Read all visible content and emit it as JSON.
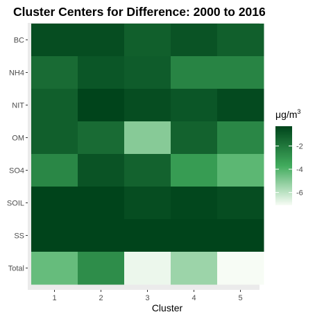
{
  "chart_data": {
    "type": "heatmap",
    "title": "Cluster Centers for Difference: 2000 to 2016",
    "xlabel": "Cluster",
    "ylabel": "",
    "x": [
      "1",
      "2",
      "3",
      "4",
      "5"
    ],
    "y": [
      "BC",
      "NH4",
      "NIT",
      "OM",
      "SO4",
      "SOIL",
      "SS",
      "Total"
    ],
    "values": [
      [
        -0.6,
        -0.6,
        -1.2,
        -0.8,
        -1.2
      ],
      [
        -1.6,
        -0.9,
        -1.1,
        -2.4,
        -2.4
      ],
      [
        -1.2,
        -0.3,
        -0.6,
        -0.9,
        -0.5
      ],
      [
        -1.2,
        -1.6,
        -5.0,
        -1.3,
        -2.5
      ],
      [
        -2.5,
        -0.8,
        -1.3,
        -3.2,
        -4.2
      ],
      [
        -0.3,
        -0.3,
        -0.6,
        -0.4,
        -0.6
      ],
      [
        -0.3,
        -0.3,
        -0.3,
        -0.3,
        -0.3
      ],
      [
        -4.4,
        -2.7,
        -6.9,
        -5.4,
        -7.1
      ]
    ],
    "color_scale": {
      "title": "μg/m",
      "title_superscript": "3",
      "range": [
        -7.1,
        -0.3
      ],
      "low_color": "#f7fcf5",
      "high_color": "#00441b",
      "ticks": [
        -2,
        -4,
        -6
      ],
      "tick_labels": [
        "-2",
        "-4",
        "-6"
      ]
    },
    "panel_background": "#ebebeb",
    "grid": true
  }
}
